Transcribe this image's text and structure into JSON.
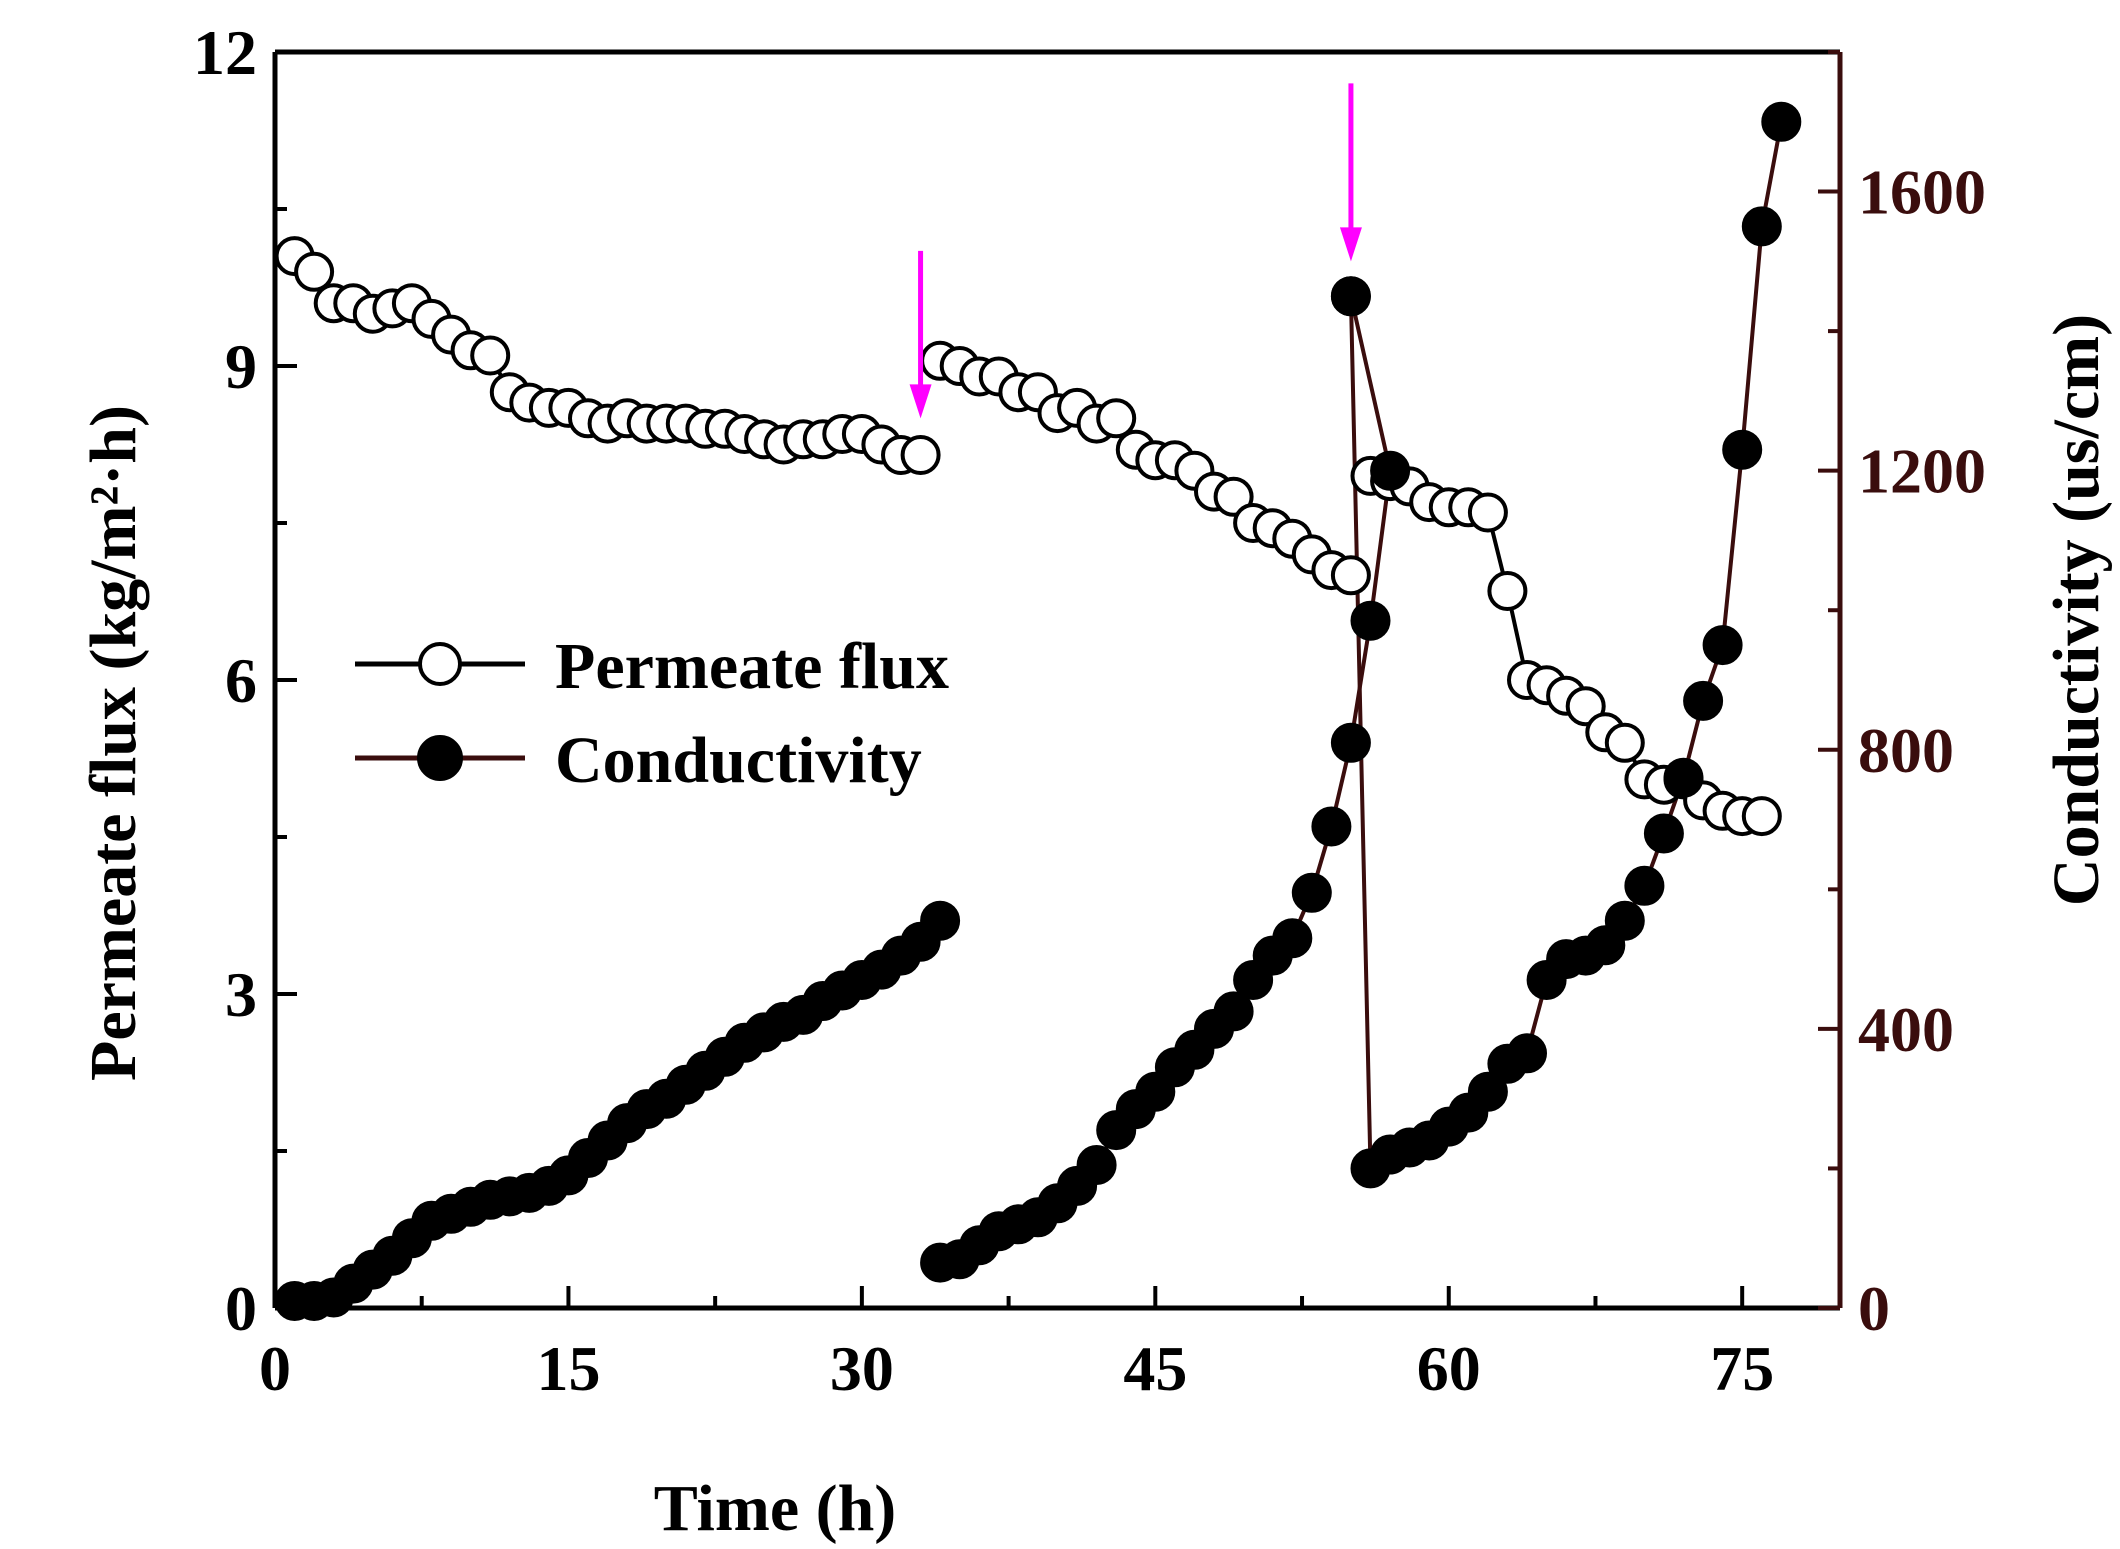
{
  "chart_data": {
    "type": "line",
    "title": "",
    "xlabel": "Time (h)",
    "ylabel": "Permeate flux (kg/m²·h)",
    "y2label": "Conductivity (us/cm)",
    "xlim": [
      0,
      80
    ],
    "ylim": [
      0,
      12
    ],
    "y2lim": [
      0,
      1800
    ],
    "xticks": [
      0,
      15,
      30,
      45,
      60,
      75
    ],
    "yticks": [
      0,
      3,
      6,
      9,
      12
    ],
    "y2ticks": [
      0,
      400,
      800,
      1200,
      1600
    ],
    "colors": {
      "axis": "#000000",
      "y2axis": "#3a0d0d",
      "arrow": "#ff00ff",
      "line": "#000000",
      "line2": "#3a0d0d"
    },
    "legend": {
      "position": "center-left",
      "entries": [
        "Permeate flux",
        "Conductivity"
      ]
    },
    "annotations": [
      {
        "type": "arrow",
        "x": 33,
        "y_top": 10.1,
        "y_bottom": 8.5
      },
      {
        "type": "arrow",
        "x": 55,
        "y_top": 11.7,
        "y_bottom": 10.0
      }
    ],
    "series": [
      {
        "name": "Permeate flux",
        "axis": "left",
        "marker": "open-circle",
        "segments": [
          [
            [
              1,
              10.05
            ],
            [
              2,
              9.9
            ],
            [
              3,
              9.6
            ],
            [
              4,
              9.6
            ],
            [
              5,
              9.5
            ],
            [
              6,
              9.55
            ],
            [
              7,
              9.6
            ],
            [
              8,
              9.45
            ],
            [
              9,
              9.3
            ],
            [
              10,
              9.15
            ],
            [
              11,
              9.1
            ],
            [
              12,
              8.75
            ],
            [
              13,
              8.65
            ],
            [
              14,
              8.6
            ],
            [
              15,
              8.6
            ],
            [
              16,
              8.5
            ],
            [
              17,
              8.45
            ],
            [
              18,
              8.5
            ],
            [
              19,
              8.45
            ],
            [
              20,
              8.45
            ],
            [
              21,
              8.45
            ],
            [
              22,
              8.4
            ],
            [
              23,
              8.4
            ],
            [
              24,
              8.35
            ],
            [
              25,
              8.3
            ],
            [
              26,
              8.25
            ],
            [
              27,
              8.3
            ],
            [
              28,
              8.3
            ],
            [
              29,
              8.35
            ],
            [
              30,
              8.35
            ],
            [
              31,
              8.25
            ],
            [
              32,
              8.15
            ],
            [
              33,
              8.15
            ]
          ],
          [
            [
              34,
              9.05
            ],
            [
              35,
              9.0
            ],
            [
              36,
              8.9
            ],
            [
              37,
              8.9
            ],
            [
              38,
              8.75
            ],
            [
              39,
              8.75
            ],
            [
              40,
              8.55
            ],
            [
              41,
              8.6
            ],
            [
              42,
              8.45
            ],
            [
              43,
              8.5
            ],
            [
              44,
              8.2
            ],
            [
              45,
              8.1
            ],
            [
              46,
              8.1
            ],
            [
              47,
              8.0
            ],
            [
              48,
              7.8
            ],
            [
              49,
              7.75
            ],
            [
              50,
              7.5
            ],
            [
              51,
              7.45
            ],
            [
              52,
              7.35
            ],
            [
              53,
              7.2
            ],
            [
              54,
              7.05
            ],
            [
              55,
              7.0
            ]
          ],
          [
            [
              56,
              7.95
            ],
            [
              57,
              7.9
            ],
            [
              58,
              7.85
            ],
            [
              59,
              7.7
            ],
            [
              60,
              7.65
            ],
            [
              61,
              7.65
            ],
            [
              62,
              7.6
            ],
            [
              63,
              6.85
            ],
            [
              64,
              6.0
            ],
            [
              65,
              5.95
            ],
            [
              66,
              5.85
            ],
            [
              67,
              5.75
            ],
            [
              68,
              5.5
            ],
            [
              69,
              5.4
            ],
            [
              70,
              5.05
            ],
            [
              71,
              5.0
            ],
            [
              72,
              5.05
            ],
            [
              73,
              4.85
            ],
            [
              74,
              4.75
            ],
            [
              75,
              4.7
            ],
            [
              76,
              4.7
            ]
          ]
        ]
      },
      {
        "name": "Conductivity",
        "axis": "right",
        "marker": "filled-circle",
        "segments": [
          [
            [
              1,
              10
            ],
            [
              2,
              10
            ],
            [
              3,
              15
            ],
            [
              4,
              35
            ],
            [
              5,
              55
            ],
            [
              6,
              75
            ],
            [
              7,
              100
            ],
            [
              8,
              125
            ],
            [
              9,
              135
            ],
            [
              10,
              145
            ],
            [
              11,
              155
            ],
            [
              12,
              160
            ],
            [
              13,
              165
            ],
            [
              14,
              175
            ],
            [
              15,
              190
            ],
            [
              16,
              215
            ],
            [
              17,
              240
            ],
            [
              18,
              265
            ],
            [
              19,
              285
            ],
            [
              20,
              300
            ],
            [
              21,
              320
            ],
            [
              22,
              340
            ],
            [
              23,
              360
            ],
            [
              24,
              380
            ],
            [
              25,
              395
            ],
            [
              26,
              410
            ],
            [
              27,
              420
            ],
            [
              28,
              440
            ],
            [
              29,
              455
            ],
            [
              30,
              470
            ],
            [
              31,
              485
            ],
            [
              32,
              505
            ],
            [
              33,
              525
            ],
            [
              34,
              555
            ]
          ],
          [
            [
              34,
              65
            ],
            [
              35,
              70
            ],
            [
              36,
              90
            ],
            [
              37,
              110
            ],
            [
              38,
              120
            ],
            [
              39,
              130
            ],
            [
              40,
              150
            ],
            [
              41,
              175
            ],
            [
              42,
              205
            ],
            [
              43,
              255
            ],
            [
              44,
              285
            ],
            [
              45,
              310
            ],
            [
              46,
              345
            ],
            [
              47,
              370
            ],
            [
              48,
              400
            ],
            [
              49,
              425
            ],
            [
              50,
              470
            ],
            [
              51,
              505
            ],
            [
              52,
              530
            ],
            [
              53,
              595
            ],
            [
              54,
              690
            ],
            [
              55,
              810
            ],
            [
              56,
              985
            ],
            [
              57,
              1200
            ],
            [
              55,
              1450
            ]
          ],
          [
            [
              55,
              1450
            ],
            [
              56,
              200
            ],
            [
              57,
              220
            ],
            [
              58,
              230
            ],
            [
              59,
              240
            ],
            [
              60,
              260
            ],
            [
              61,
              280
            ],
            [
              62,
              310
            ],
            [
              63,
              350
            ],
            [
              64,
              365
            ],
            [
              65,
              470
            ],
            [
              66,
              500
            ],
            [
              67,
              505
            ],
            [
              68,
              520
            ],
            [
              69,
              555
            ],
            [
              70,
              605
            ],
            [
              71,
              680
            ],
            [
              72,
              760
            ],
            [
              73,
              870
            ],
            [
              74,
              950
            ],
            [
              75,
              1230
            ],
            [
              76,
              1550
            ],
            [
              77,
              1700
            ]
          ]
        ]
      }
    ]
  }
}
